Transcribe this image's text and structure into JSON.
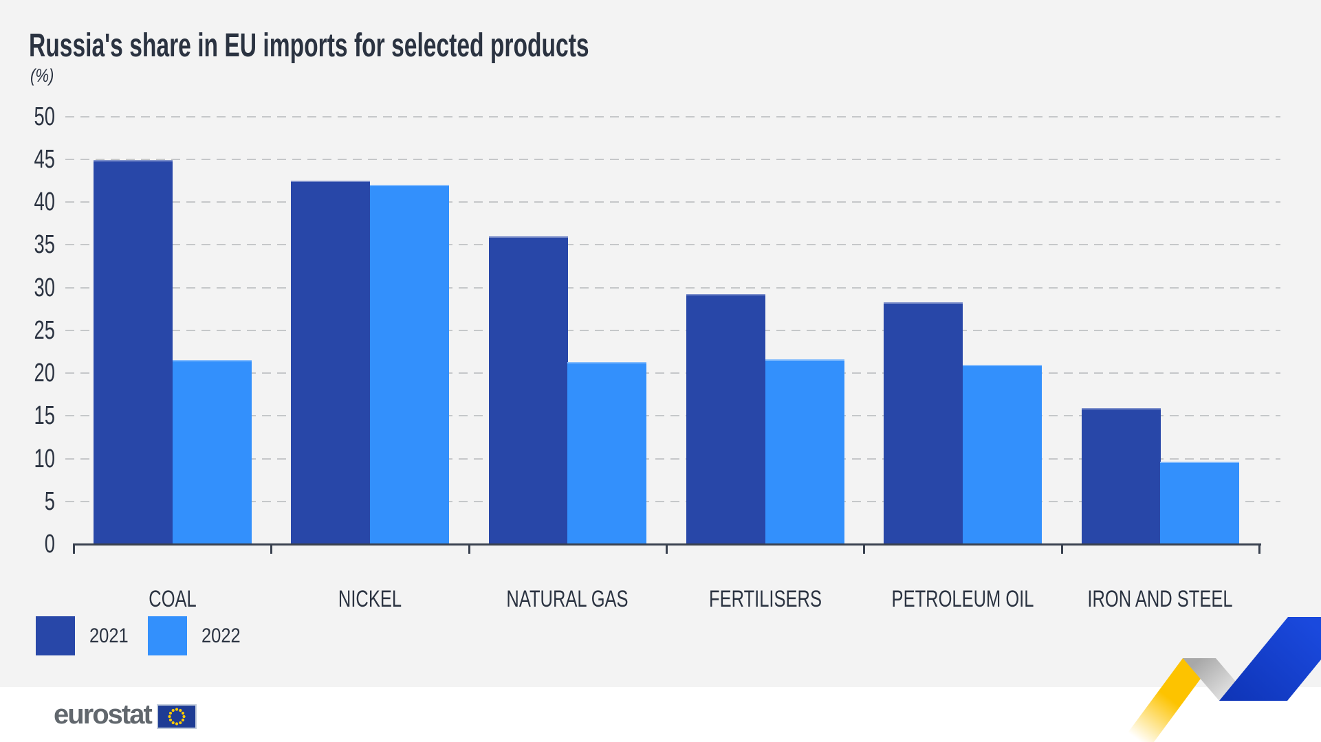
{
  "title": "Russia's share in EU imports for selected products",
  "subtitle": "(%)",
  "chart_data": {
    "type": "bar",
    "title": "Russia's share in EU imports for selected products",
    "unit_label": "(%)",
    "categories": [
      "COAL",
      "NICKEL",
      "NATURAL GAS",
      "FERTILISERS",
      "PETROLEUM OIL",
      "IRON AND STEEL"
    ],
    "series": [
      {
        "name": "2021",
        "color": "#2847A8",
        "values": [
          44.9,
          42.5,
          36.0,
          29.2,
          28.3,
          15.9
        ]
      },
      {
        "name": "2022",
        "color": "#3390FC",
        "values": [
          21.5,
          42.0,
          21.3,
          21.6,
          21.0,
          9.6
        ]
      }
    ],
    "ylim": [
      0,
      50
    ],
    "yticks": [
      0,
      5,
      10,
      15,
      20,
      25,
      30,
      35,
      40,
      45,
      50
    ],
    "grid": "horizontal-dashed",
    "legend_position": "bottom-left"
  },
  "legend": {
    "items": [
      {
        "label": "2021",
        "color": "#2847A8"
      },
      {
        "label": "2022",
        "color": "#3390FC"
      }
    ]
  },
  "footer": {
    "logo_text": "eurostat"
  },
  "colors": {
    "bar_2021": "#2847A8",
    "bar_2022": "#3390FC",
    "text": "#2b3341",
    "ribbon_yellow": "#fdc300",
    "ribbon_blue": "#143FC6",
    "eu_flag_blue": "#1e3c94",
    "eu_star_yellow": "#ffcc00"
  }
}
